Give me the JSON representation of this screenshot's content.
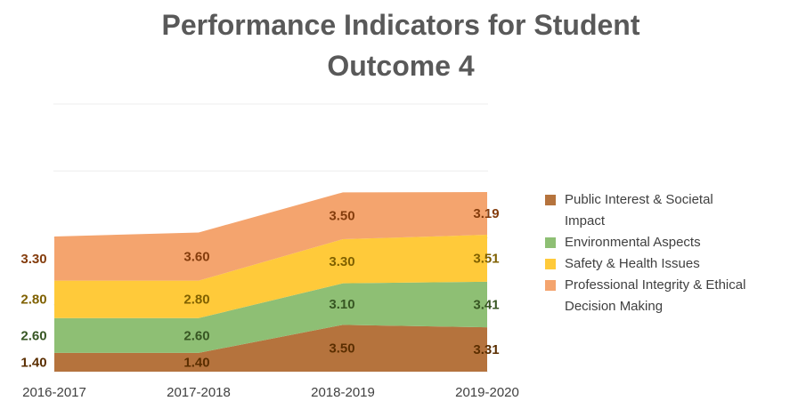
{
  "chart_data": {
    "type": "area",
    "stacked": true,
    "title": "Performance Indicators for Student Outcome 4",
    "title_lines": [
      "Performance Indicators for Student",
      "Outcome 4"
    ],
    "categories": [
      "2016-2017",
      "2017-2018",
      "2018-2019",
      "2019-2020"
    ],
    "series": [
      {
        "name": "Public Interest & Societal Impact",
        "legend_lines": [
          "Public Interest & Societal",
          "Impact"
        ],
        "values": [
          1.4,
          1.4,
          3.5,
          3.31
        ],
        "labels": [
          "1.40",
          "1.40",
          "3.50",
          "3.31"
        ],
        "color": "#B5733D",
        "label_color": "#5A2E00"
      },
      {
        "name": "Environmental Aspects",
        "legend_lines": [
          "Environmental Aspects"
        ],
        "values": [
          2.6,
          2.6,
          3.1,
          3.41
        ],
        "labels": [
          "2.60",
          "2.60",
          "3.10",
          "3.41"
        ],
        "color": "#8EBF74",
        "label_color": "#375623"
      },
      {
        "name": "Safety & Health Issues",
        "legend_lines": [
          "Safety & Health Issues"
        ],
        "values": [
          2.8,
          2.8,
          3.3,
          3.51
        ],
        "labels": [
          "2.80",
          "2.80",
          "3.30",
          "3.51"
        ],
        "color": "#FFCA3A",
        "label_color": "#7F6000"
      },
      {
        "name": "Professional Integrity & Ethical Decision Making",
        "legend_lines": [
          "Professional Integrity & Ethical",
          "Decision Making"
        ],
        "values": [
          3.3,
          3.6,
          3.5,
          3.19
        ],
        "labels": [
          "3.30",
          "3.60",
          "3.50",
          "3.19"
        ],
        "color": "#F4A46E",
        "label_color": "#843C0C"
      }
    ],
    "ylim": [
      0,
      20
    ],
    "grid": true,
    "legend": "right"
  }
}
